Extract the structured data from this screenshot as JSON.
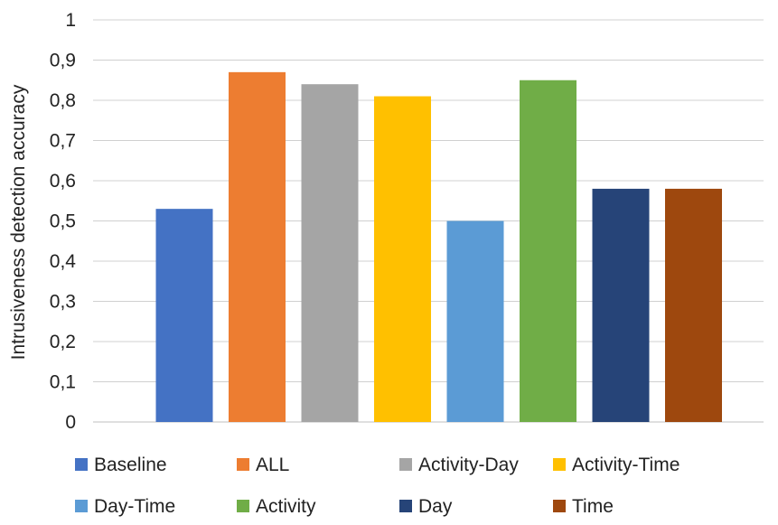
{
  "chart_data": {
    "type": "bar",
    "title": "",
    "ylabel": "Intrusiveness detection accuracy",
    "xlabel": "",
    "ylim": [
      0,
      1
    ],
    "yticks": [
      "0",
      "0,1",
      "0,2",
      "0,3",
      "0,4",
      "0,5",
      "0,6",
      "0,7",
      "0,8",
      "0,9",
      "1"
    ],
    "grid": true,
    "legend_position": "bottom",
    "series": [
      {
        "name": "Baseline",
        "value": 0.53,
        "color": "#4472C4"
      },
      {
        "name": "ALL",
        "value": 0.87,
        "color": "#ED7D31"
      },
      {
        "name": "Activity-Day",
        "value": 0.84,
        "color": "#A5A5A5"
      },
      {
        "name": "Activity-Time",
        "value": 0.81,
        "color": "#FFC000"
      },
      {
        "name": "Day-Time",
        "value": 0.5,
        "color": "#5B9BD5"
      },
      {
        "name": "Activity",
        "value": 0.85,
        "color": "#70AD47"
      },
      {
        "name": "Day",
        "value": 0.58,
        "color": "#264478"
      },
      {
        "name": "Time",
        "value": 0.58,
        "color": "#9E480E"
      }
    ]
  }
}
